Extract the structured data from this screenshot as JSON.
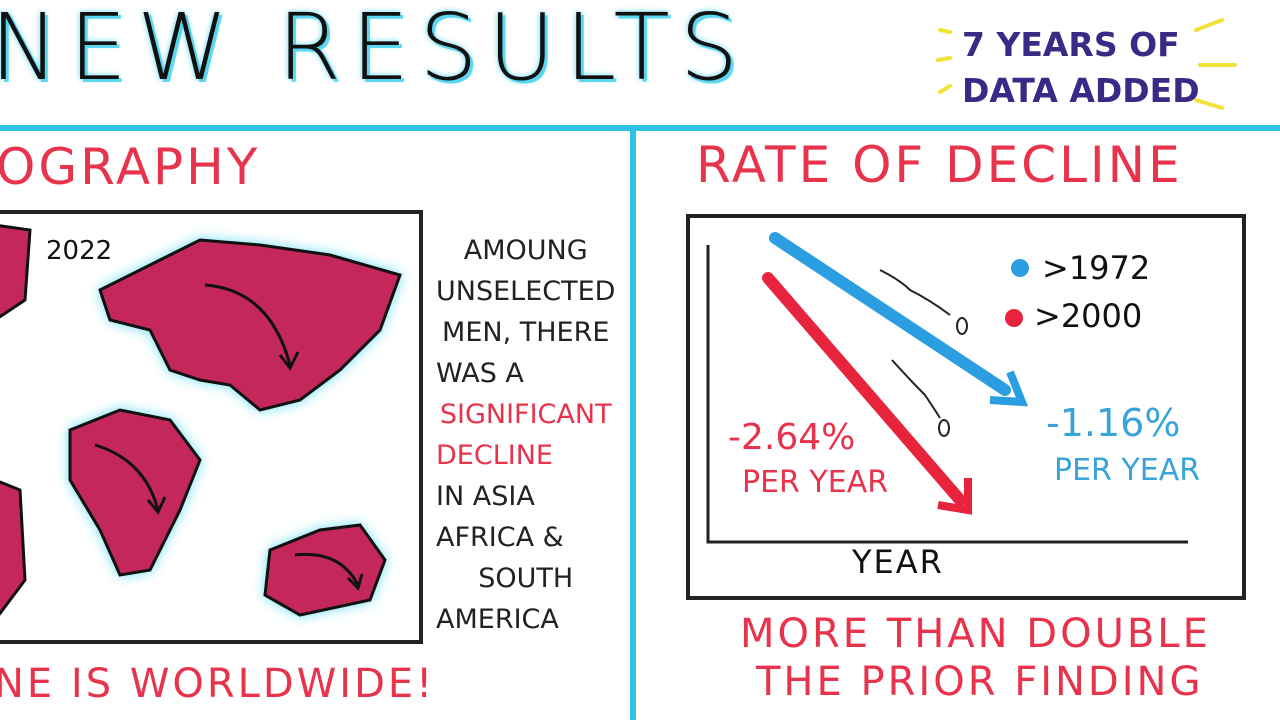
{
  "header": {
    "title": "NEW RESULTS",
    "badge": [
      "7 YEARS OF",
      "DATA ADDED"
    ]
  },
  "left_panel": {
    "title": "OGRAPHY",
    "map_year": "2022",
    "note": [
      "AMOUNG",
      "UNSELECTED",
      "MEN, THERE",
      "WAS A",
      "SIGNIFICANT",
      "DECLINE",
      "IN ASIA",
      "AFRICA &",
      "SOUTH",
      "AMERICA"
    ],
    "footer": "NE IS WORLDWIDE!"
  },
  "right_panel": {
    "title": "RATE OF DECLINE",
    "legend": [
      ">1972",
      ">2000"
    ],
    "red_label": [
      "-2.64%",
      "PER YEAR"
    ],
    "blue_label": [
      "-1.16%",
      "PER YEAR"
    ],
    "x_axis": "YEAR",
    "footer": [
      "MORE THAN DOUBLE",
      "THE PRIOR FINDING"
    ]
  }
}
